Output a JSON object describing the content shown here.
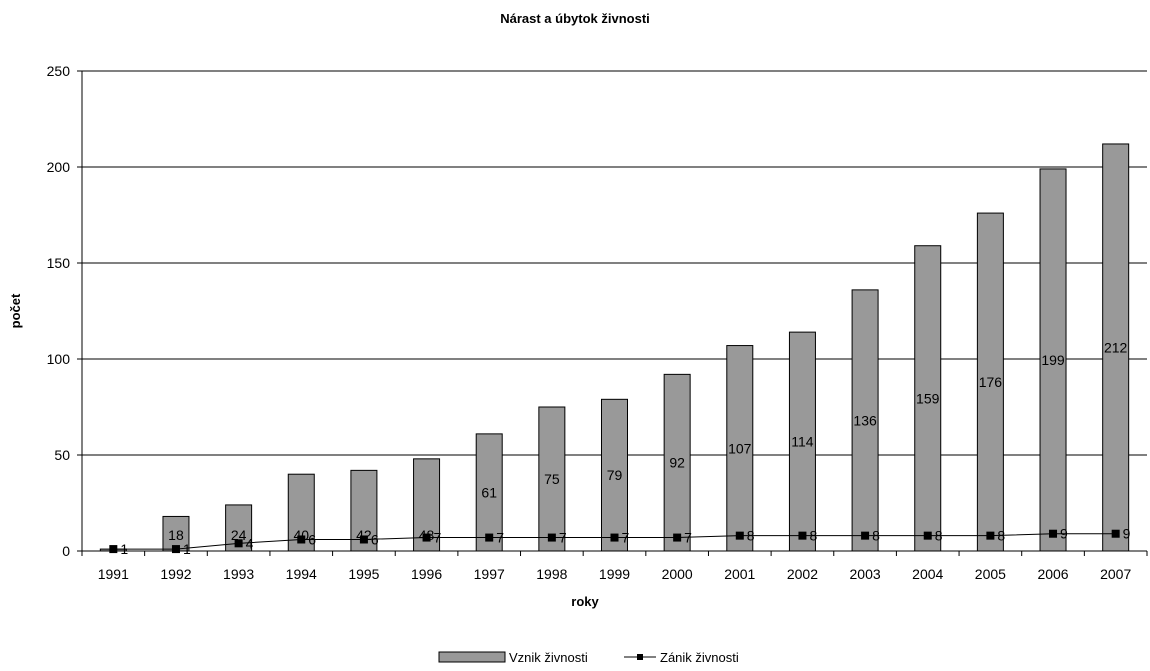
{
  "chart_data": {
    "type": "bar",
    "title": "Nárast a úbytok živnosti",
    "xlabel": "roky",
    "ylabel": "počet",
    "ylim": [
      0,
      250
    ],
    "yticks": [
      0,
      50,
      100,
      150,
      200,
      250
    ],
    "grid": true,
    "legend_position": "bottom",
    "categories": [
      "1991",
      "1992",
      "1993",
      "1994",
      "1995",
      "1996",
      "1997",
      "1998",
      "1999",
      "2000",
      "2001",
      "2002",
      "2003",
      "2004",
      "2005",
      "2006",
      "2007"
    ],
    "series": [
      {
        "name": "Vznik živnosti",
        "kind": "bar",
        "color": "#999999",
        "values": [
          1,
          18,
          24,
          40,
          42,
          48,
          61,
          75,
          79,
          92,
          107,
          114,
          136,
          159,
          176,
          199,
          212
        ],
        "labels": [
          "",
          "18",
          "24",
          "40",
          "42",
          "48",
          "61",
          "75",
          "79",
          "92",
          "107",
          "114",
          "136",
          "159",
          "176",
          "199",
          "212"
        ]
      },
      {
        "name": "Zánik živnosti",
        "kind": "line",
        "color": "#000000",
        "marker": "square",
        "values": [
          1,
          1,
          4,
          6,
          6,
          7,
          7,
          7,
          7,
          7,
          8,
          8,
          8,
          8,
          8,
          9,
          9
        ],
        "labels": [
          "1",
          "1",
          "4",
          "6",
          "6",
          "7",
          "7",
          "7",
          "7",
          "7",
          "8",
          "8",
          "8",
          "8",
          "8",
          "9",
          "9"
        ]
      }
    ]
  }
}
